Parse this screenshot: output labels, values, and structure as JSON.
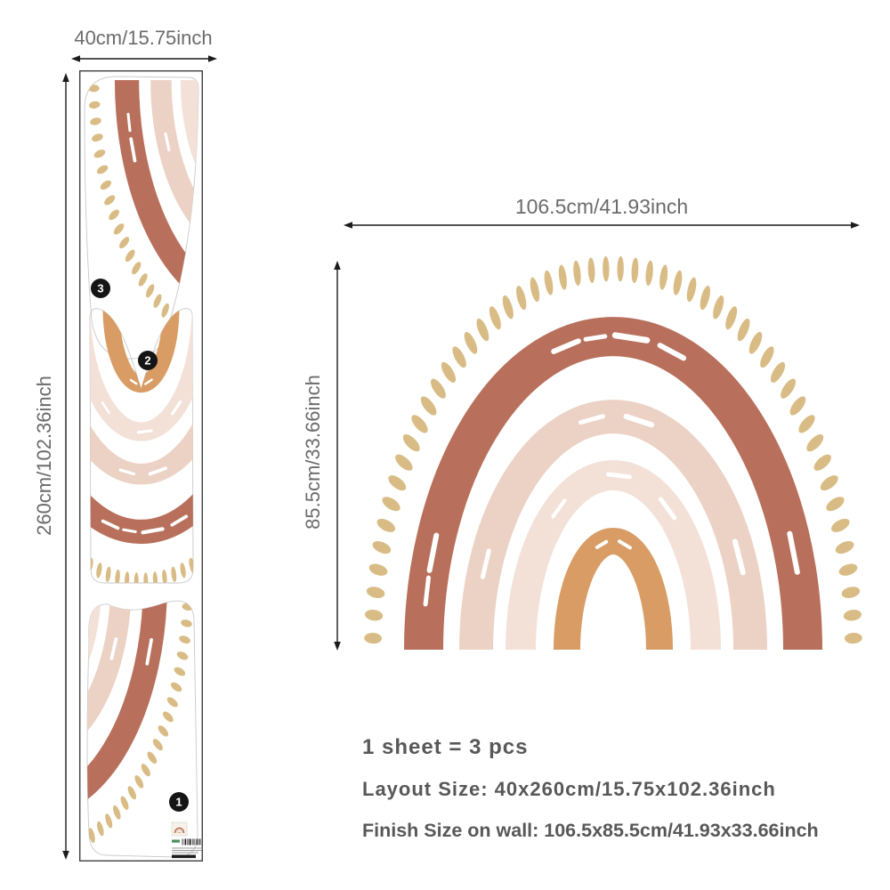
{
  "sheet_diagram": {
    "width_label": "40cm/15.75inch",
    "height_label": "260cm/102.36inch",
    "pieces": [
      {
        "number": "3"
      },
      {
        "number": "2"
      },
      {
        "number": "1"
      }
    ]
  },
  "finish_diagram": {
    "width_label": "106.5cm/41.93inch",
    "height_label": "85.5cm/33.66inch"
  },
  "specs": {
    "line1": "1 sheet = 3 pcs",
    "line2": "Layout Size: 40x260cm/15.75x102.36inch",
    "line3": "Finish Size on wall: 106.5x85.5cm/41.93x33.66inch"
  },
  "colors": {
    "terracotta": "#b8705c",
    "pink": "#ecd2c5",
    "light_pink": "#f3e1d8",
    "orange": "#d89c64",
    "tan": "#d9bc85",
    "badge": "#151515",
    "badge_text": "#ffffff",
    "dimension_text": "#6b6b6b",
    "spec_text": "#585858",
    "arrow": "#1c1c1c",
    "sheet_border": "#3f3f3f",
    "die_cut_line": "#c9c9c9",
    "background": "#ffffff"
  }
}
